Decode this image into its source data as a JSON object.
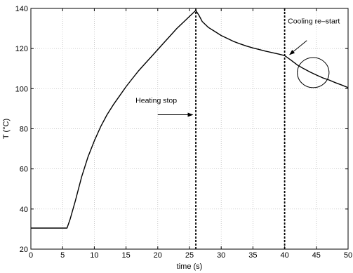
{
  "chart_data": {
    "type": "line",
    "title": "",
    "xlabel": "time (s)",
    "ylabel": "T (°C)",
    "xlim": [
      0,
      50
    ],
    "ylim": [
      20,
      140
    ],
    "xticks": [
      0,
      5,
      10,
      15,
      20,
      25,
      30,
      35,
      40,
      45,
      50
    ],
    "yticks": [
      20,
      40,
      60,
      80,
      100,
      120,
      140
    ],
    "grid": true,
    "series": [
      {
        "color": "#000000",
        "x": [
          0,
          2,
          4,
          5.7,
          6.2,
          7,
          8,
          9,
          10,
          11,
          12,
          13,
          14,
          15,
          16,
          17,
          18,
          19,
          20,
          21,
          22,
          23,
          24,
          25,
          25.5,
          26,
          26.5,
          27,
          28,
          29,
          30,
          31,
          32,
          33,
          34,
          35,
          36,
          37,
          38,
          39,
          40,
          41,
          42,
          43,
          44,
          45,
          46,
          47,
          48,
          49,
          50
        ],
        "y": [
          30.5,
          30.5,
          30.5,
          30.5,
          35,
          44,
          56,
          66,
          74,
          81,
          87,
          92,
          96.5,
          101,
          105,
          109,
          112.5,
          116,
          119.5,
          123,
          126.5,
          130,
          133,
          136,
          137.5,
          139,
          136.5,
          133.5,
          130.5,
          128.5,
          126.5,
          125,
          123.5,
          122.3,
          121.2,
          120.3,
          119.5,
          118.7,
          118,
          117.3,
          116.5,
          114.2,
          111.8,
          110,
          108.3,
          106.8,
          105.4,
          104.3,
          103,
          101.8,
          100.5
        ]
      }
    ],
    "vlines": [
      {
        "x": 26,
        "style": "dashed"
      },
      {
        "x": 40,
        "style": "dashed"
      }
    ],
    "annotations": [
      {
        "text": "Heating stop",
        "arrow_to": {
          "x": 25.5,
          "y": 87
        }
      },
      {
        "text": "Cooling re–start",
        "arrow_to": {
          "x": 40.8,
          "y": 117
        }
      }
    ],
    "ellipse": {
      "cx": 44.5,
      "cy": 108,
      "rx": 2.5,
      "ry": 7.5
    }
  }
}
